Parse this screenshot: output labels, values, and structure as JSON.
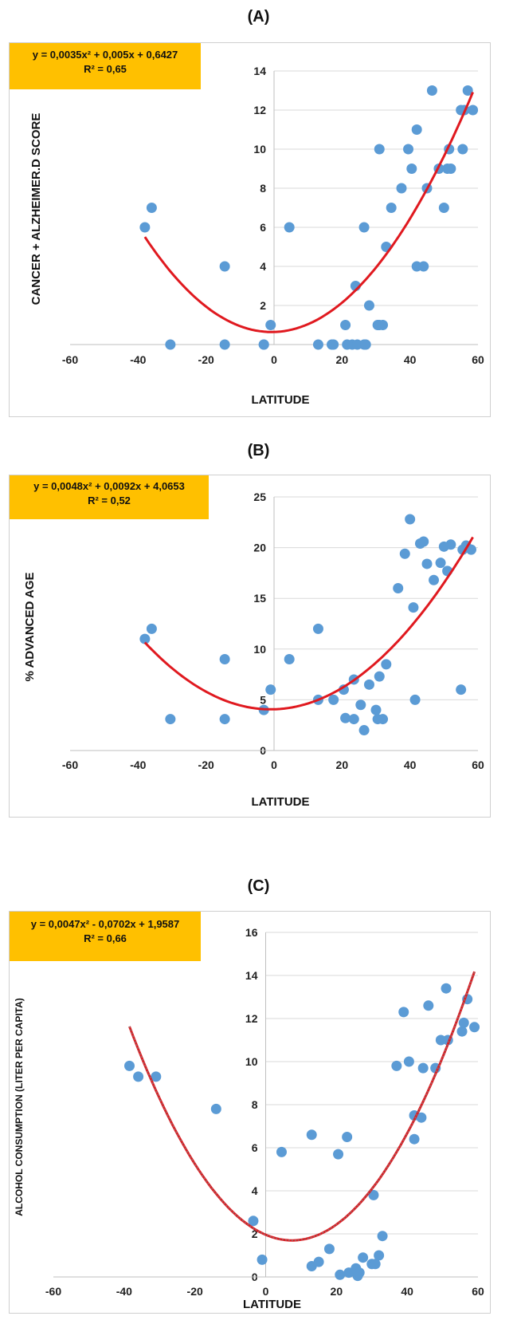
{
  "panels": [
    {
      "label": "(A)"
    },
    {
      "label": "(B)"
    },
    {
      "label": "(C)"
    }
  ],
  "colors": {
    "points": "#5b9bd5",
    "trend": "#e0191f",
    "trend_dash": "#7f7f7f",
    "equation_bg": "#ffc000"
  },
  "chart_data": [
    {
      "type": "scatter",
      "equation": "y = 0,0035x² + 0,005x + 0,6427",
      "r2": "R² = 0,65",
      "xlabel": "LATITUDE",
      "ylabel": "CANCER + ALZHEIMER.D SCORE",
      "xlim": [
        -60,
        60
      ],
      "ylim": [
        0,
        14
      ],
      "xticks": [
        "-60",
        "-40",
        "-20",
        "0",
        "20",
        "40",
        "60"
      ],
      "yticks": [
        "0",
        "2",
        "4",
        "6",
        "8",
        "10",
        "12",
        "14"
      ],
      "trend": {
        "coef": [
          0.0035,
          0.005,
          0.6427
        ],
        "xrange": [
          -38,
          58.5
        ],
        "style": "solid"
      },
      "x": [
        -38,
        -36,
        -30.5,
        -14.5,
        -14.5,
        -3,
        -3,
        -1,
        4.5,
        13,
        17,
        17.5,
        21,
        21.5,
        23,
        24,
        24.5,
        26.5,
        26.5,
        27,
        28,
        30.5,
        31,
        31,
        32,
        33,
        34.5,
        37.5,
        39.5,
        40.5,
        42,
        42,
        44,
        45,
        46.5,
        48.5,
        50,
        51,
        51.5,
        52,
        55,
        55.5,
        56,
        57,
        58.5
      ],
      "y": [
        6,
        7,
        0,
        4,
        0,
        0,
        0,
        1,
        6,
        0,
        0,
        0,
        1,
        0,
        0,
        3,
        0,
        0,
        6,
        0,
        2,
        1,
        10,
        1,
        1,
        5,
        7,
        8,
        10,
        9,
        11,
        4,
        4,
        8,
        13,
        9,
        7,
        9,
        10,
        9,
        12,
        10,
        12,
        13,
        12
      ]
    },
    {
      "type": "scatter",
      "equation": "y = 0,0048x² + 0,0092x + 4,0653",
      "r2": "R² = 0,52",
      "xlabel": "LATITUDE",
      "ylabel": "% ADVANCED AGE",
      "xlim": [
        -60,
        60
      ],
      "ylim": [
        0,
        25
      ],
      "xticks": [
        "-60",
        "-40",
        "-20",
        "0",
        "20",
        "40",
        "60"
      ],
      "yticks": [
        "0",
        "5",
        "10",
        "15",
        "20",
        "25"
      ],
      "trend": {
        "coef": [
          0.0048,
          0.0092,
          4.0653
        ],
        "xrange": [
          -38,
          58.5
        ],
        "style": "solid"
      },
      "x": [
        -38,
        -36,
        -30.5,
        -14.5,
        -14.5,
        -3,
        -1,
        4.5,
        13,
        13,
        17.5,
        20.5,
        21,
        23.5,
        23.5,
        25.5,
        26.5,
        28,
        30,
        30.5,
        31,
        32,
        33,
        36.5,
        38.5,
        40,
        41,
        41.5,
        43,
        44,
        45,
        47,
        49,
        50,
        51,
        52,
        55,
        55.5,
        56.5,
        58
      ],
      "y": [
        11,
        12,
        3.1,
        9,
        3.1,
        4,
        6,
        9,
        12,
        5,
        5,
        6,
        3.2,
        7,
        3.1,
        4.5,
        2,
        6.5,
        4,
        3.1,
        7.3,
        3.1,
        8.5,
        16,
        19.4,
        22.8,
        14.1,
        5,
        20.4,
        20.6,
        18.4,
        16.8,
        18.5,
        20.1,
        17.7,
        20.3,
        6,
        19.8,
        20.2,
        19.8
      ]
    },
    {
      "type": "scatter",
      "equation": "y = 0,0047x² - 0,0702x + 1,9587",
      "r2": "R² = 0,66",
      "xlabel": "LATITUDE",
      "ylabel": "ALCOHOL CONSUMPTION (LITER  PER CAPITA)",
      "xlim": [
        -60,
        60
      ],
      "ylim": [
        0,
        16
      ],
      "xticks": [
        "-60",
        "-40",
        "-20",
        "0",
        "20",
        "40",
        "60"
      ],
      "yticks": [
        "0",
        "2",
        "4",
        "6",
        "8",
        "10",
        "12",
        "14",
        "16"
      ],
      "trend": {
        "coef": [
          0.0047,
          -0.0702,
          1.9587
        ],
        "xrange": [
          -38.5,
          59
        ],
        "style": "dashed"
      },
      "x": [
        -38.5,
        -36,
        -31,
        -14,
        -3.5,
        -1,
        4.5,
        13,
        13,
        15,
        18,
        20.5,
        21,
        23,
        23.5,
        25.5,
        26,
        26.5,
        27.5,
        30,
        30.5,
        31,
        32,
        33,
        37,
        39,
        40.5,
        42,
        42,
        44,
        44.5,
        46,
        48,
        49.5,
        51,
        51.5,
        55.5,
        56,
        57,
        59
      ],
      "y": [
        9.8,
        9.3,
        9.3,
        7.8,
        2.6,
        0.8,
        5.8,
        6.6,
        0.5,
        0.7,
        1.3,
        5.7,
        0.1,
        6.5,
        0.2,
        0.4,
        0.05,
        0.2,
        0.9,
        0.6,
        3.8,
        0.6,
        1,
        1.9,
        9.8,
        12.3,
        10,
        7.5,
        6.4,
        7.4,
        9.7,
        12.6,
        9.7,
        11,
        13.4,
        11,
        11.4,
        11.8,
        12.9,
        11.6
      ]
    }
  ]
}
